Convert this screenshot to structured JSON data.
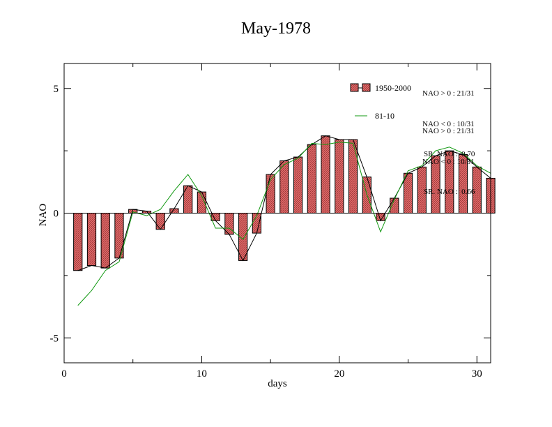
{
  "chart_data": {
    "type": "bar",
    "title": "May-1978",
    "xlabel": "days",
    "ylabel": "NAO",
    "xlim": [
      0,
      31
    ],
    "ylim": [
      -6,
      6
    ],
    "xticks": [
      0,
      10,
      20,
      30
    ],
    "yticks": [
      -5,
      0,
      5
    ],
    "grid": false,
    "legend_position": "top-right",
    "colors": {
      "bar_fill": "#e06a6a",
      "bar_edge": "#000000",
      "line_black": "#000000",
      "line_green": "#119911"
    },
    "x": [
      1,
      2,
      3,
      4,
      5,
      6,
      7,
      8,
      9,
      10,
      11,
      12,
      13,
      14,
      15,
      16,
      17,
      18,
      19,
      20,
      21,
      22,
      23,
      24,
      25,
      26,
      27,
      28,
      29,
      30,
      31
    ],
    "series": [
      {
        "name": "1950-2000",
        "kind": "bar+line",
        "values": [
          -2.3,
          -2.1,
          -2.2,
          -1.8,
          0.15,
          0.08,
          -0.65,
          0.18,
          1.1,
          0.85,
          -0.3,
          -0.85,
          -1.9,
          -0.8,
          1.55,
          2.1,
          2.25,
          2.75,
          3.1,
          2.95,
          2.95,
          1.45,
          -0.3,
          0.6,
          1.6,
          1.85,
          2.3,
          2.5,
          2.35,
          1.85,
          1.4
        ]
      },
      {
        "name": "81-10",
        "kind": "line",
        "values": [
          -3.7,
          -3.1,
          -2.3,
          -1.95,
          0.05,
          -0.1,
          0.15,
          0.9,
          1.55,
          0.7,
          -0.6,
          -0.6,
          -1.05,
          -0.1,
          1.35,
          1.95,
          2.2,
          2.8,
          2.75,
          2.85,
          2.8,
          0.75,
          -0.75,
          0.55,
          1.7,
          1.9,
          2.5,
          2.65,
          2.4,
          1.9,
          1.6
        ]
      }
    ],
    "stats": [
      [
        "NAO > 0 : 21/31",
        "NAO < 0 : 10/31",
        "SR. NAO :  0.70"
      ],
      [
        "NAO > 0 : 21/31",
        "NAO < 0 : 10/31",
        "SR. NAO :  0.66"
      ]
    ]
  }
}
